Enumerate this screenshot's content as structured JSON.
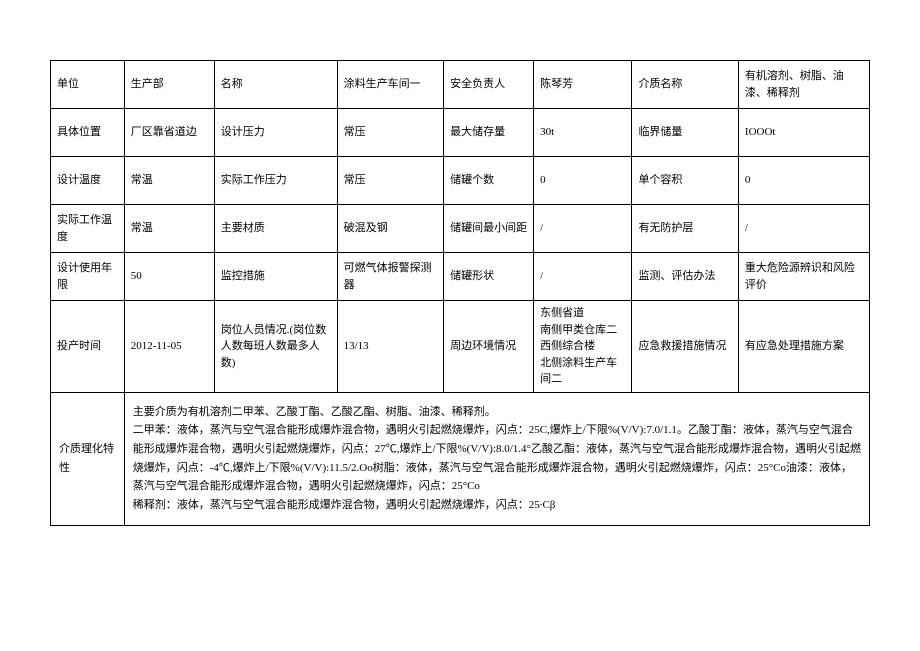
{
  "row1": {
    "f1": "单位",
    "v1": "生产部",
    "f2": "名称",
    "v2": "涂料生产车间一",
    "f3": "安全负责人",
    "v3": "陈琴芳",
    "f4": "介质名称",
    "v4": "有机溶剂、树脂、油漆、稀释剂"
  },
  "row2": {
    "f1": "具体位置",
    "v1": "厂区靠省道边",
    "f2": "设计压力",
    "v2": "常压",
    "f3": "最大储存量",
    "v3": "30t",
    "f4": "临界储量",
    "v4": "IOOOt"
  },
  "row3": {
    "f1": "设计温度",
    "v1": "常温",
    "f2": "实际工作压力",
    "v2": "常压",
    "f3": "储罐个数",
    "v3": "0",
    "f4": "单个容积",
    "v4": "0"
  },
  "row4": {
    "f1": "实际工作温度",
    "v1": "常温",
    "f2": "主要材质",
    "v2": "破混及钢",
    "f3": "储罐间最小间距",
    "v3": "/",
    "f4": "有无防护层",
    "v4": "/"
  },
  "row5": {
    "f1": "设计使用年限",
    "v1": "50",
    "f2": "监控措施",
    "v2": "可燃气体报警探测器",
    "f3": "储罐形状",
    "v3": "/",
    "f4": "监测、评估办法",
    "v4": "重大危险源辨识和风险评价"
  },
  "row6": {
    "f1": "投产时间",
    "v1": "2012-11-05",
    "f2": "岗位人员情况.(岗位数人数每班人数最多人数)",
    "v2": "13/13",
    "f3": "周边环境情况",
    "v3": "东侧省道\n南侧甲类仓库二\n西侧综合楼\n北侧涂料生产车间二",
    "f4": "应急救援措施情况",
    "v4": "有应急处理措施方案"
  },
  "row7": {
    "f1": "介质理化特性",
    "v1": "主要介质为有机溶剂二甲苯、乙酸丁酯、乙酸乙酯、树脂、油漆、稀释剂。\n二甲苯：液体，蒸汽与空气混合能形成爆炸混合物，遇明火引起燃烧爆炸，闪点：25C,爆炸上/下限%(V/V):7.0/1.1。乙酸丁酯：液体，蒸汽与空气混合能形成爆炸混合物，遇明火引起燃烧爆炸，闪点：27℃,爆炸上/下限%(V/V):8.0/1.4°乙酸乙酯：液体，蒸汽与空气混合能形成爆炸混合物，遇明火引起燃烧爆炸，闪点：-4℃,爆炸上/下限%(V/V):11.5/2.Oo树脂：液体，蒸汽与空气混合能形成爆炸混合物，遇明火引起燃烧爆炸，闪点：25°Co油漆：液体，蒸汽与空气混合能形成爆炸混合物，遇明火引起燃烧爆炸，闪点：25°Co\n稀释剂：液体，蒸汽与空气混合能形成爆炸混合物，遇明火引起燃烧爆炸，闪点：25∙Cβ"
  }
}
